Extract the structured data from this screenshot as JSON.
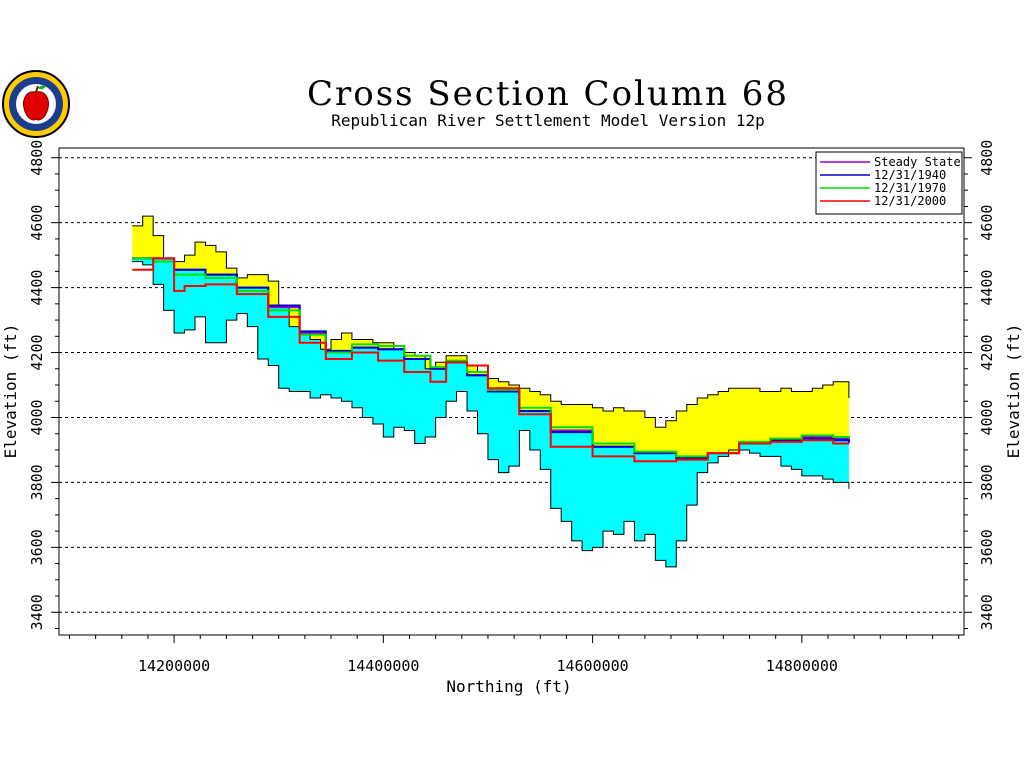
{
  "chart_data": {
    "type": "line",
    "title": "Cross Section Column 68",
    "subtitle": "Republican River Settlement Model Version 12p",
    "xlabel": "Northing (ft)",
    "ylabel": "Elevation (ft)",
    "xlim": [
      14090000,
      14955000
    ],
    "ylim": [
      3330000,
      4830000
    ],
    "ylim_ft": [
      3330,
      4830
    ],
    "x_ticks": [
      14200000,
      14400000,
      14600000,
      14800000
    ],
    "x_tick_labels": [
      "14200000",
      "14400000",
      "14600000",
      "14800000"
    ],
    "y_ticks": [
      3400,
      3600,
      3800,
      4000,
      4200,
      4400,
      4600,
      4800
    ],
    "y_tick_labels": [
      "3400",
      "3600",
      "3800",
      "4000",
      "4200",
      "4400",
      "4600",
      "4800"
    ],
    "grid": "horizontal dashed at major y ticks",
    "legend_position": "top-right",
    "layers": {
      "land_surface_top": {
        "color": "#ffff00",
        "x": [
          14160000,
          14170000,
          14180000,
          14190000,
          14200000,
          14210000,
          14220000,
          14230000,
          14240000,
          14250000,
          14260000,
          14270000,
          14280000,
          14290000,
          14300000,
          14310000,
          14320000,
          14330000,
          14340000,
          14350000,
          14360000,
          14370000,
          14380000,
          14390000,
          14400000,
          14410000,
          14420000,
          14430000,
          14440000,
          14450000,
          14460000,
          14470000,
          14480000,
          14490000,
          14500000,
          14510000,
          14520000,
          14530000,
          14540000,
          14550000,
          14560000,
          14570000,
          14580000,
          14590000,
          14600000,
          14610000,
          14620000,
          14630000,
          14640000,
          14650000,
          14660000,
          14670000,
          14680000,
          14690000,
          14700000,
          14710000,
          14720000,
          14730000,
          14740000,
          14750000,
          14760000,
          14770000,
          14780000,
          14790000,
          14800000,
          14810000,
          14820000,
          14830000,
          14845000
        ],
        "y": [
          4590,
          4620,
          4560,
          4490,
          4480,
          4500,
          4540,
          4530,
          4510,
          4460,
          4430,
          4440,
          4440,
          4420,
          4340,
          4280,
          4260,
          4240,
          4210,
          4240,
          4260,
          4240,
          4240,
          4230,
          4230,
          4210,
          4200,
          4190,
          4150,
          4170,
          4190,
          4190,
          4160,
          4140,
          4120,
          4110,
          4100,
          4090,
          4080,
          4070,
          4050,
          4040,
          4040,
          4040,
          4030,
          4020,
          4030,
          4020,
          4020,
          4000,
          3970,
          3990,
          4020,
          4040,
          4060,
          4070,
          4080,
          4090,
          4090,
          4090,
          4080,
          4080,
          4090,
          4080,
          4080,
          4090,
          4100,
          4110,
          4060
        ]
      },
      "aquifer_bottom": {
        "color": "#00ffff",
        "x": [
          14160000,
          14170000,
          14180000,
          14190000,
          14200000,
          14210000,
          14220000,
          14230000,
          14240000,
          14250000,
          14260000,
          14270000,
          14280000,
          14290000,
          14300000,
          14310000,
          14320000,
          14330000,
          14340000,
          14350000,
          14360000,
          14370000,
          14380000,
          14390000,
          14400000,
          14410000,
          14420000,
          14430000,
          14440000,
          14450000,
          14460000,
          14470000,
          14480000,
          14490000,
          14500000,
          14510000,
          14520000,
          14530000,
          14540000,
          14550000,
          14560000,
          14570000,
          14580000,
          14590000,
          14600000,
          14610000,
          14620000,
          14630000,
          14640000,
          14650000,
          14660000,
          14670000,
          14680000,
          14690000,
          14700000,
          14710000,
          14720000,
          14730000,
          14740000,
          14750000,
          14760000,
          14770000,
          14780000,
          14790000,
          14800000,
          14810000,
          14820000,
          14830000,
          14845000
        ],
        "y": [
          4480,
          4470,
          4410,
          4330,
          4260,
          4270,
          4310,
          4230,
          4230,
          4300,
          4320,
          4280,
          4180,
          4160,
          4090,
          4080,
          4080,
          4060,
          4070,
          4060,
          4050,
          4030,
          4000,
          3980,
          3940,
          3970,
          3960,
          3920,
          3940,
          4000,
          4050,
          4080,
          4020,
          3950,
          3870,
          3830,
          3850,
          3960,
          3900,
          3840,
          3720,
          3680,
          3620,
          3590,
          3600,
          3650,
          3640,
          3680,
          3620,
          3640,
          3560,
          3540,
          3620,
          3730,
          3830,
          3860,
          3880,
          3900,
          3900,
          3890,
          3880,
          3880,
          3850,
          3840,
          3820,
          3820,
          3810,
          3800,
          3780
        ]
      }
    },
    "series": [
      {
        "name": "Steady State",
        "color": "#9900cc",
        "x": [
          14160000,
          14180000,
          14200000,
          14230000,
          14260000,
          14290000,
          14320000,
          14345000,
          14370000,
          14395000,
          14420000,
          14445000,
          14460000,
          14480000,
          14500000,
          14530000,
          14560000,
          14600000,
          14640000,
          14680000,
          14710000,
          14740000,
          14770000,
          14800000,
          14830000,
          14845000
        ],
        "y": [
          4490,
          4490,
          4455,
          4440,
          4400,
          4340,
          4260,
          4200,
          4215,
          4210,
          4180,
          4150,
          4170,
          4130,
          4080,
          4020,
          3960,
          3910,
          3890,
          3875,
          3890,
          3920,
          3930,
          3940,
          3935,
          3920
        ]
      },
      {
        "name": "12/31/1940",
        "color": "#0000cc",
        "x": [
          14160000,
          14180000,
          14200000,
          14230000,
          14260000,
          14290000,
          14320000,
          14345000,
          14370000,
          14395000,
          14420000,
          14445000,
          14460000,
          14480000,
          14500000,
          14530000,
          14560000,
          14600000,
          14640000,
          14680000,
          14710000,
          14740000,
          14770000,
          14800000,
          14830000,
          14845000
        ],
        "y": [
          4490,
          4490,
          4455,
          4440,
          4400,
          4345,
          4265,
          4205,
          4215,
          4210,
          4180,
          4150,
          4170,
          4130,
          4080,
          4020,
          3955,
          3910,
          3890,
          3875,
          3890,
          3920,
          3930,
          3935,
          3930,
          3925
        ]
      },
      {
        "name": "12/31/1970",
        "color": "#00dd00",
        "x": [
          14160000,
          14180000,
          14200000,
          14230000,
          14260000,
          14290000,
          14320000,
          14345000,
          14370000,
          14395000,
          14420000,
          14445000,
          14460000,
          14480000,
          14500000,
          14530000,
          14560000,
          14600000,
          14640000,
          14680000,
          14710000,
          14740000,
          14770000,
          14800000,
          14830000,
          14845000
        ],
        "y": [
          4490,
          4480,
          4440,
          4430,
          4390,
          4330,
          4255,
          4200,
          4225,
          4220,
          4190,
          4155,
          4175,
          4140,
          4085,
          4030,
          3970,
          3920,
          3895,
          3880,
          3890,
          3925,
          3935,
          3945,
          3940,
          3935
        ]
      },
      {
        "name": "12/31/2000",
        "color": "#ff0000",
        "x": [
          14160000,
          14180000,
          14200000,
          14210000,
          14230000,
          14260000,
          14290000,
          14320000,
          14345000,
          14370000,
          14395000,
          14420000,
          14445000,
          14460000,
          14480000,
          14500000,
          14530000,
          14560000,
          14600000,
          14640000,
          14680000,
          14710000,
          14740000,
          14770000,
          14800000,
          14830000,
          14845000
        ],
        "y": [
          4455,
          4490,
          4390,
          4405,
          4410,
          4380,
          4310,
          4230,
          4180,
          4200,
          4175,
          4140,
          4110,
          4170,
          4160,
          4090,
          4010,
          3910,
          3880,
          3865,
          3870,
          3890,
          3920,
          3925,
          3930,
          3920,
          3920
        ]
      }
    ]
  }
}
